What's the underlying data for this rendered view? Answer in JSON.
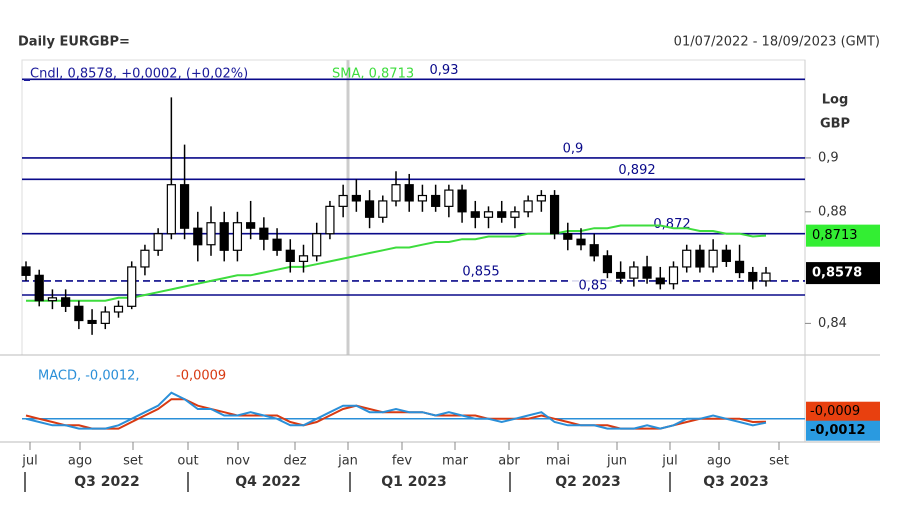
{
  "chart_data": {
    "type": "candlestick",
    "title": "Daily EURGBP=",
    "date_range": "01/07/2022 - 18/09/2023 (GMT)",
    "price_legend": "Cndl, 0,8578, +0,0002, (+0,02%)",
    "sma_legend": "SMA, 0,8713",
    "axis_label": [
      "Log",
      "GBP"
    ],
    "log_scale": true,
    "candle_color": "#000000",
    "level_color": "#0a0a8a",
    "sma_color": "#3ddc3d",
    "ylim": [
      0.829,
      0.9375
    ],
    "yticks": [
      {
        "value": 0.84,
        "label": "0,84"
      },
      {
        "value": 0.88,
        "label": "0,88"
      },
      {
        "value": 0.9,
        "label": "0,9"
      }
    ],
    "levels": [
      {
        "value": 0.93,
        "label": "0,93"
      },
      {
        "value": 0.9,
        "label": "0,9"
      },
      {
        "value": 0.892,
        "label": "0,892"
      },
      {
        "value": 0.872,
        "label": "0,872"
      },
      {
        "value": 0.855,
        "label": "0,855",
        "dashed": true
      },
      {
        "value": 0.85,
        "label": "0,85"
      }
    ],
    "last_price_label": "0,8578",
    "sma_label": "0,8713",
    "ohlc": [
      [
        0.86,
        0.862,
        0.855,
        0.857
      ],
      [
        0.857,
        0.859,
        0.846,
        0.848
      ],
      [
        0.848,
        0.852,
        0.845,
        0.849
      ],
      [
        0.849,
        0.852,
        0.844,
        0.846
      ],
      [
        0.846,
        0.848,
        0.838,
        0.841
      ],
      [
        0.841,
        0.845,
        0.836,
        0.84
      ],
      [
        0.84,
        0.846,
        0.838,
        0.844
      ],
      [
        0.844,
        0.848,
        0.842,
        0.846
      ],
      [
        0.846,
        0.862,
        0.845,
        0.86
      ],
      [
        0.86,
        0.868,
        0.857,
        0.866
      ],
      [
        0.866,
        0.874,
        0.864,
        0.872
      ],
      [
        0.872,
        0.923,
        0.87,
        0.89
      ],
      [
        0.89,
        0.905,
        0.87,
        0.874
      ],
      [
        0.874,
        0.88,
        0.862,
        0.868
      ],
      [
        0.868,
        0.882,
        0.864,
        0.876
      ],
      [
        0.876,
        0.88,
        0.862,
        0.866
      ],
      [
        0.866,
        0.88,
        0.862,
        0.876
      ],
      [
        0.876,
        0.884,
        0.87,
        0.874
      ],
      [
        0.874,
        0.878,
        0.866,
        0.87
      ],
      [
        0.87,
        0.874,
        0.864,
        0.866
      ],
      [
        0.866,
        0.87,
        0.858,
        0.862
      ],
      [
        0.862,
        0.868,
        0.858,
        0.864
      ],
      [
        0.864,
        0.876,
        0.862,
        0.872
      ],
      [
        0.872,
        0.884,
        0.87,
        0.882
      ],
      [
        0.882,
        0.89,
        0.878,
        0.886
      ],
      [
        0.886,
        0.892,
        0.88,
        0.884
      ],
      [
        0.884,
        0.888,
        0.874,
        0.878
      ],
      [
        0.878,
        0.886,
        0.876,
        0.884
      ],
      [
        0.884,
        0.895,
        0.882,
        0.89
      ],
      [
        0.89,
        0.894,
        0.88,
        0.884
      ],
      [
        0.884,
        0.89,
        0.88,
        0.886
      ],
      [
        0.886,
        0.89,
        0.88,
        0.882
      ],
      [
        0.882,
        0.89,
        0.878,
        0.888
      ],
      [
        0.888,
        0.89,
        0.876,
        0.88
      ],
      [
        0.88,
        0.884,
        0.874,
        0.878
      ],
      [
        0.878,
        0.882,
        0.874,
        0.88
      ],
      [
        0.88,
        0.884,
        0.876,
        0.878
      ],
      [
        0.878,
        0.882,
        0.874,
        0.88
      ],
      [
        0.88,
        0.886,
        0.878,
        0.884
      ],
      [
        0.884,
        0.888,
        0.88,
        0.886
      ],
      [
        0.886,
        0.888,
        0.87,
        0.872
      ],
      [
        0.872,
        0.876,
        0.866,
        0.87
      ],
      [
        0.87,
        0.874,
        0.866,
        0.868
      ],
      [
        0.868,
        0.872,
        0.862,
        0.864
      ],
      [
        0.864,
        0.866,
        0.856,
        0.858
      ],
      [
        0.858,
        0.862,
        0.854,
        0.856
      ],
      [
        0.856,
        0.862,
        0.853,
        0.86
      ],
      [
        0.86,
        0.864,
        0.854,
        0.856
      ],
      [
        0.856,
        0.86,
        0.852,
        0.854
      ],
      [
        0.854,
        0.862,
        0.852,
        0.86
      ],
      [
        0.86,
        0.868,
        0.858,
        0.866
      ],
      [
        0.866,
        0.868,
        0.858,
        0.86
      ],
      [
        0.86,
        0.87,
        0.858,
        0.866
      ],
      [
        0.866,
        0.868,
        0.86,
        0.862
      ],
      [
        0.862,
        0.868,
        0.856,
        0.858
      ],
      [
        0.858,
        0.86,
        0.852,
        0.855
      ],
      [
        0.855,
        0.86,
        0.853,
        0.8578
      ]
    ],
    "sma": [
      0.848,
      0.848,
      0.848,
      0.848,
      0.848,
      0.848,
      0.848,
      0.849,
      0.849,
      0.85,
      0.851,
      0.852,
      0.853,
      0.854,
      0.855,
      0.856,
      0.857,
      0.857,
      0.858,
      0.859,
      0.86,
      0.86,
      0.861,
      0.862,
      0.863,
      0.864,
      0.865,
      0.866,
      0.867,
      0.867,
      0.868,
      0.869,
      0.869,
      0.87,
      0.87,
      0.871,
      0.871,
      0.871,
      0.872,
      0.872,
      0.872,
      0.873,
      0.873,
      0.874,
      0.874,
      0.875,
      0.875,
      0.875,
      0.875,
      0.874,
      0.874,
      0.873,
      0.873,
      0.872,
      0.872,
      0.871,
      0.8713
    ],
    "macd": {
      "ylim": [
        -0.0065,
        0.018
      ],
      "macd_legend": "MACD, -0,0012,",
      "signal_legend": "-0,0009",
      "macd_color": "#2a8fd8",
      "signal_color": "#d83a12",
      "macd": [
        0.0,
        -0.001,
        -0.002,
        -0.002,
        -0.003,
        -0.003,
        -0.003,
        -0.002,
        0.0,
        0.002,
        0.004,
        0.008,
        0.006,
        0.003,
        0.003,
        0.001,
        0.001,
        0.002,
        0.001,
        0.0,
        -0.002,
        -0.002,
        0.0,
        0.002,
        0.004,
        0.004,
        0.002,
        0.002,
        0.003,
        0.002,
        0.002,
        0.001,
        0.002,
        0.001,
        0.0,
        0.0,
        -0.001,
        0.0,
        0.001,
        0.002,
        -0.001,
        -0.002,
        -0.002,
        -0.002,
        -0.003,
        -0.003,
        -0.003,
        -0.002,
        -0.003,
        -0.002,
        0.0,
        0.0,
        0.001,
        0.0,
        -0.001,
        -0.002,
        -0.0012
      ],
      "signal": [
        0.001,
        0.0,
        -0.001,
        -0.002,
        -0.002,
        -0.003,
        -0.003,
        -0.003,
        -0.001,
        0.001,
        0.003,
        0.006,
        0.006,
        0.004,
        0.003,
        0.002,
        0.001,
        0.001,
        0.001,
        0.001,
        -0.001,
        -0.002,
        -0.001,
        0.001,
        0.003,
        0.004,
        0.003,
        0.002,
        0.002,
        0.002,
        0.002,
        0.001,
        0.001,
        0.001,
        0.001,
        0.0,
        0.0,
        0.0,
        0.0,
        0.001,
        0.0,
        -0.001,
        -0.002,
        -0.002,
        -0.002,
        -0.003,
        -0.003,
        -0.003,
        -0.003,
        -0.002,
        -0.001,
        0.0,
        0.0,
        0.0,
        0.0,
        -0.001,
        -0.0009
      ]
    },
    "months": [
      "jul",
      "ago",
      "set",
      "out",
      "nov",
      "dez",
      "jan",
      "fev",
      "mar",
      "abr",
      "mai",
      "jun",
      "jul",
      "ago",
      "set"
    ],
    "quarters": [
      "Q3 2022",
      "Q4 2022",
      "Q1 2023",
      "Q2 2023",
      "Q3 2023"
    ]
  }
}
